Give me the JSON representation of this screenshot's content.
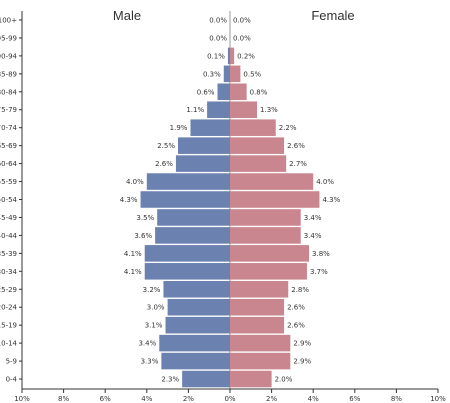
{
  "chart_data": {
    "type": "bar",
    "subtype": "population-pyramid",
    "xlim": [
      -10,
      10
    ],
    "x_ticks": [
      "10%",
      "8%",
      "6%",
      "4%",
      "2%",
      "0%",
      "2%",
      "4%",
      "6%",
      "8%",
      "10%"
    ],
    "categories": [
      "100+",
      "95-99",
      "90-94",
      "85-89",
      "80-84",
      "75-79",
      "70-74",
      "65-69",
      "60-64",
      "55-59",
      "50-54",
      "45-49",
      "40-44",
      "35-39",
      "30-34",
      "25-29",
      "20-24",
      "15-19",
      "10-14",
      "5-9",
      "0-4"
    ],
    "series": [
      {
        "name": "Male",
        "color": "#6b82b0",
        "values": [
          0.0,
          0.0,
          0.1,
          0.3,
          0.6,
          1.1,
          1.9,
          2.5,
          2.6,
          4.0,
          4.3,
          3.5,
          3.6,
          4.1,
          4.1,
          3.2,
          3.0,
          3.1,
          3.4,
          3.3,
          2.3
        ],
        "labels": [
          "0.0%",
          "0.0%",
          "0.1%",
          "0.3%",
          "0.6%",
          "1.1%",
          "1.9%",
          "2.5%",
          "2.6%",
          "4.0%",
          "4.3%",
          "3.5%",
          "3.6%",
          "4.1%",
          "4.1%",
          "3.2%",
          "3.0%",
          "3.1%",
          "3.4%",
          "3.3%",
          "2.3%"
        ]
      },
      {
        "name": "Female",
        "color": "#c9868e",
        "values": [
          0.0,
          0.0,
          0.2,
          0.5,
          0.8,
          1.3,
          2.2,
          2.6,
          2.7,
          4.0,
          4.3,
          3.4,
          3.4,
          3.8,
          3.7,
          2.8,
          2.6,
          2.6,
          2.9,
          2.9,
          2.0
        ],
        "labels": [
          "0.0%",
          "0.0%",
          "0.2%",
          "0.5%",
          "0.8%",
          "1.3%",
          "2.2%",
          "2.6%",
          "2.7%",
          "4.0%",
          "4.3%",
          "3.4%",
          "3.4%",
          "3.8%",
          "3.7%",
          "2.8%",
          "2.6%",
          "2.6%",
          "2.9%",
          "2.9%",
          "2.0%"
        ]
      }
    ]
  }
}
